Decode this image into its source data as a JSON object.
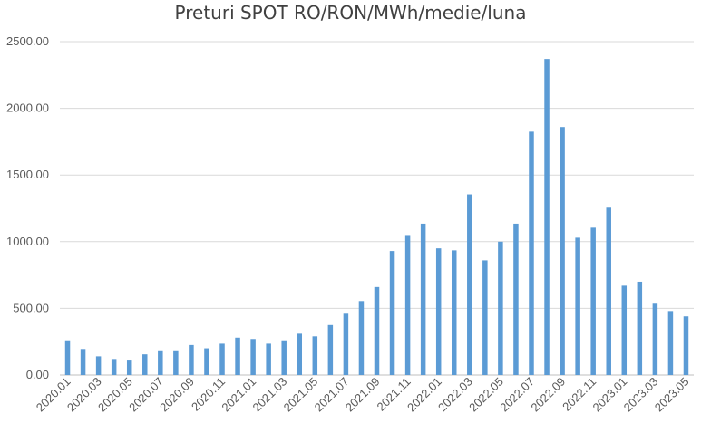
{
  "chart_data": {
    "type": "bar",
    "title": "Preturi SPOT RO/RON/MWh/medie/luna",
    "xlabel": "",
    "ylabel": "",
    "ylim": [
      0,
      2500
    ],
    "yticks": [
      "0.00",
      "500.00",
      "1000.00",
      "1500.00",
      "2000.00",
      "2500.00"
    ],
    "grid": true,
    "legend": "none",
    "bar_color": "#5B9BD5",
    "categories": [
      "2020.01",
      "2020.02",
      "2020.03",
      "2020.04",
      "2020.05",
      "2020.06",
      "2020.07",
      "2020.08",
      "2020.09",
      "2020.10",
      "2020.11",
      "2020.12",
      "2021.01",
      "2021.02",
      "2021.03",
      "2021.04",
      "2021.05",
      "2021.06",
      "2021.07",
      "2021.08",
      "2021.09",
      "2021.10",
      "2021.11",
      "2021.12",
      "2022.01",
      "2022.02",
      "2022.03",
      "2022.04",
      "2022.05",
      "2022.06",
      "2022.07",
      "2022.08",
      "2022.09",
      "2022.10",
      "2022.11",
      "2022.12",
      "2023.01",
      "2023.02",
      "2023.03",
      "2023.04",
      "2023.05"
    ],
    "xticks_shown": [
      "2020.01",
      "2020.03",
      "2020.05",
      "2020.07",
      "2020.09",
      "2020.11",
      "2021.01",
      "2021.03",
      "2021.05",
      "2021.07",
      "2021.09",
      "2021.11",
      "2022.01",
      "2022.03",
      "2022.05",
      "2022.07",
      "2022.09",
      "2022.11",
      "2023.01",
      "2023.03",
      "2023.05"
    ],
    "values": [
      260,
      195,
      140,
      120,
      115,
      155,
      185,
      185,
      225,
      200,
      235,
      280,
      270,
      235,
      260,
      310,
      290,
      375,
      460,
      555,
      660,
      930,
      1050,
      1135,
      950,
      935,
      1355,
      860,
      1000,
      1135,
      1825,
      2370,
      1860,
      1030,
      1105,
      1255,
      670,
      700,
      535,
      480,
      440
    ]
  }
}
